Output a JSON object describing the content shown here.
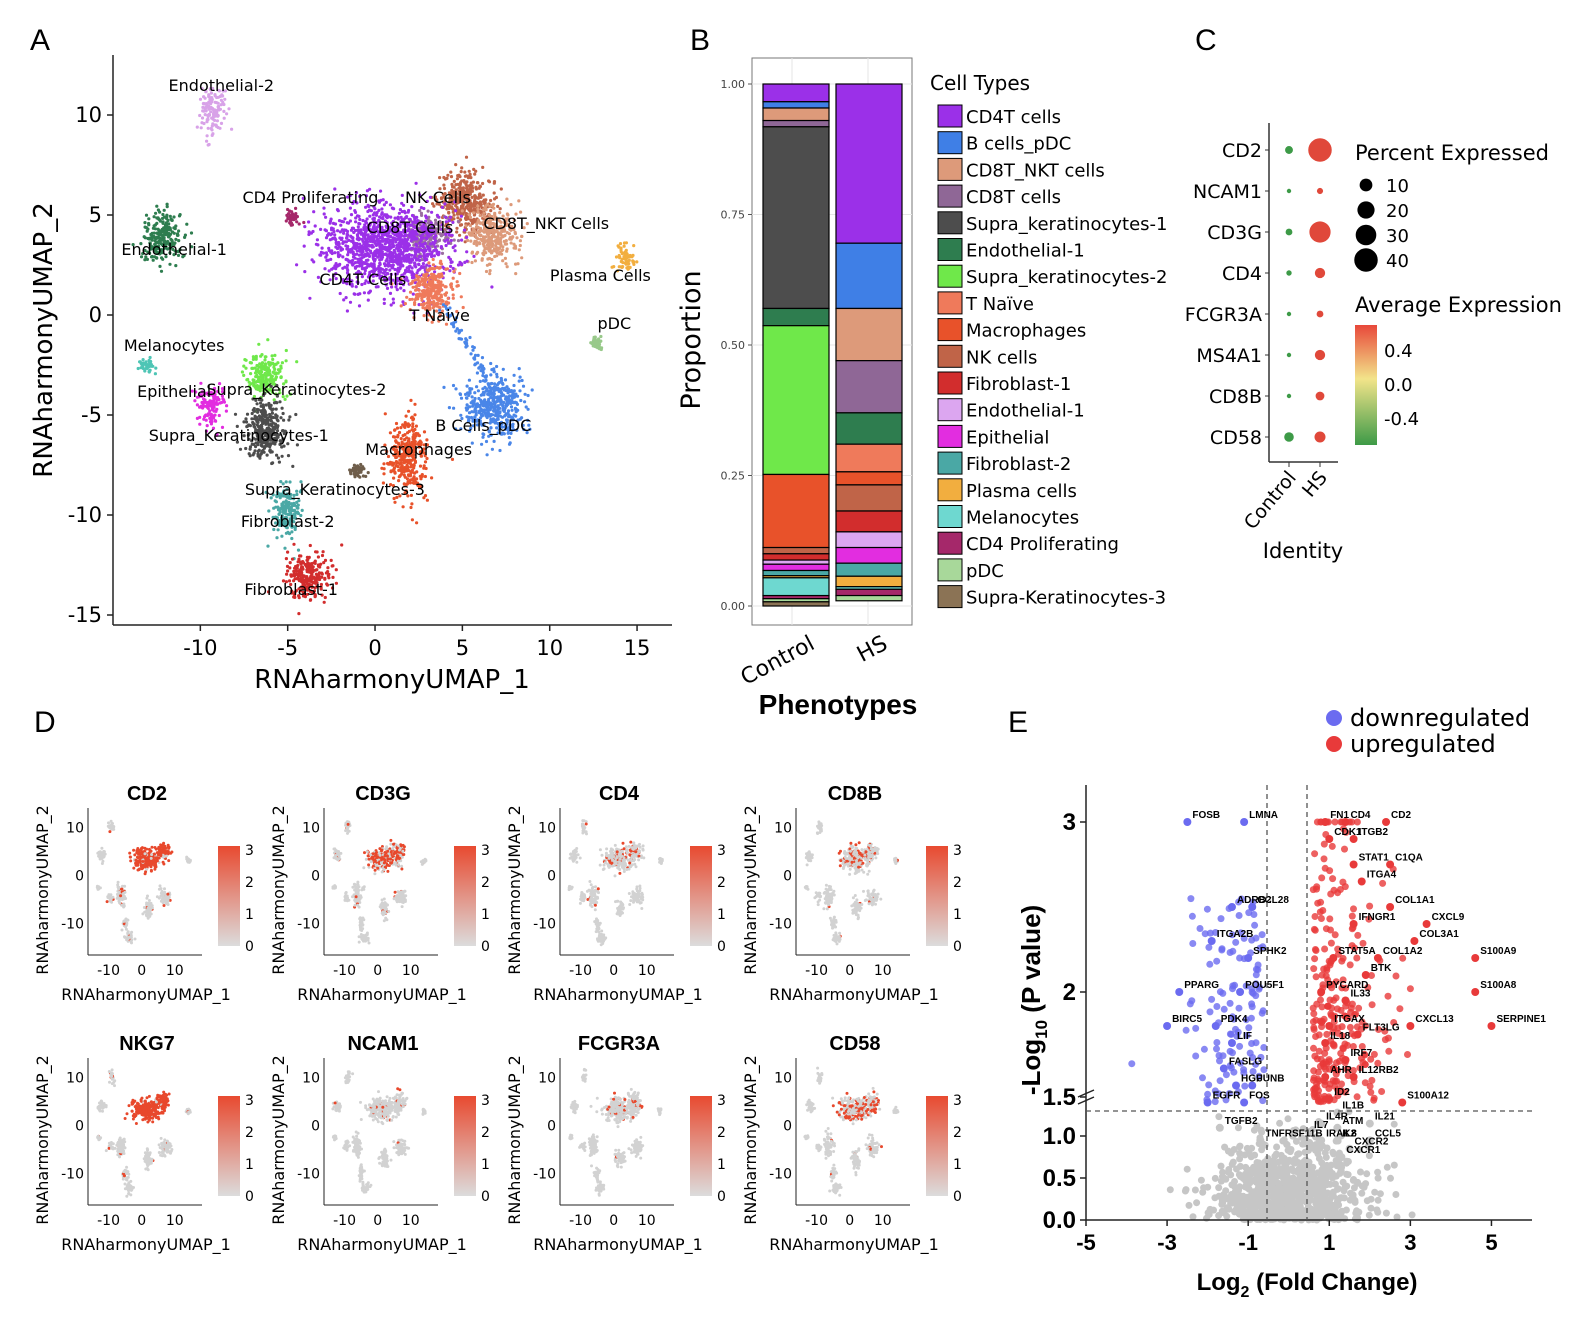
{
  "panels": {
    "A": {
      "letter": "A",
      "xlabel": "RNAharmonyUMAP_1",
      "ylabel": "RNAharmonyUMAP_2",
      "xticks": [
        -10,
        -5,
        0,
        5,
        10,
        15
      ],
      "yticks": [
        10,
        5,
        0,
        -5,
        -10,
        -15
      ],
      "xlim": [
        -15,
        17
      ],
      "ylim": [
        -15.5,
        13
      ],
      "clusters": [
        {
          "name": "Endothelial-2",
          "color": "#d8a2e8",
          "x": -9.3,
          "y": 10.2,
          "rx": 0.7,
          "ry": 1.2,
          "lx": -8.8,
          "ly": 11.2
        },
        {
          "name": "Endothelial-1",
          "color": "#2e7d4f",
          "x": -12.2,
          "y": 3.9,
          "rx": 1.1,
          "ry": 1.3,
          "lx": -11.5,
          "ly": 3.0
        },
        {
          "name": "CD4 Proliferating",
          "color": "#a5286a",
          "x": -4.7,
          "y": 4.9,
          "rx": 0.4,
          "ry": 0.4,
          "lx": -3.7,
          "ly": 5.6
        },
        {
          "name": "NK Cells",
          "color": "#c06448",
          "x": 5.2,
          "y": 5.6,
          "rx": 1.6,
          "ry": 1.5,
          "lx": 3.6,
          "ly": 5.6
        },
        {
          "name": "CD8T Cells",
          "color": "#9a6fa0",
          "x": 3.0,
          "y": 4.0,
          "rx": 1.3,
          "ry": 1.0,
          "lx": 2.0,
          "ly": 4.1
        },
        {
          "name": "CD8T_NKT Cells",
          "color": "#dd9a7a",
          "x": 6.7,
          "y": 4.0,
          "rx": 1.5,
          "ry": 1.4,
          "lx": 9.8,
          "ly": 4.3
        },
        {
          "name": "CD4T Cells",
          "color": "#9b30e8",
          "x": 0.6,
          "y": 3.4,
          "rx": 3.7,
          "ry": 2.1,
          "lx": -0.7,
          "ly": 1.5
        },
        {
          "name": "T Naive",
          "color": "#ef7a5b",
          "x": 3.2,
          "y": 1.2,
          "rx": 1.3,
          "ry": 1.3,
          "lx": 3.7,
          "ly": -0.3
        },
        {
          "name": "Plasma Cells",
          "color": "#f2ae3f",
          "x": 14.3,
          "y": 2.9,
          "rx": 0.6,
          "ry": 0.7,
          "lx": 12.9,
          "ly": 1.7
        },
        {
          "name": "pDC",
          "color": "#98c98a",
          "x": 12.7,
          "y": -1.4,
          "rx": 0.3,
          "ry": 0.25,
          "lx": 13.7,
          "ly": -0.7
        },
        {
          "name": "B Cells_pDC",
          "color": "#4a86e8",
          "x": 6.8,
          "y": -4.6,
          "rx": 1.7,
          "ry": 1.6,
          "lx": 6.2,
          "ly": -5.8
        },
        {
          "name": "Melanocytes",
          "color": "#4ec5b5",
          "x": -13.0,
          "y": -2.5,
          "rx": 0.5,
          "ry": 0.35,
          "lx": -11.5,
          "ly": -1.8
        },
        {
          "name": "Epithelial",
          "color": "#e22de0",
          "x": -9.4,
          "y": -4.5,
          "rx": 0.8,
          "ry": 1.0,
          "lx": -11.5,
          "ly": -4.1
        },
        {
          "name": "Supra_Keratinocytes-2",
          "color": "#6fe84a",
          "x": -6.3,
          "y": -3.0,
          "rx": 1.2,
          "ry": 1.1,
          "lx": -4.5,
          "ly": -4.0
        },
        {
          "name": "Supra_Keratinocytes-1",
          "color": "#4d4d4d",
          "x": -6.3,
          "y": -5.7,
          "rx": 1.2,
          "ry": 1.6,
          "lx": -7.8,
          "ly": -6.3
        },
        {
          "name": "Macrophages",
          "color": "#e8522a",
          "x": 1.9,
          "y": -7.1,
          "rx": 1.1,
          "ry": 1.9,
          "lx": 2.5,
          "ly": -7.0
        },
        {
          "name": "Supra_Keratinocytes-3",
          "color": "#6e5d4a",
          "x": -1.0,
          "y": -7.8,
          "rx": 0.5,
          "ry": 0.3,
          "lx": -2.3,
          "ly": -9.0
        },
        {
          "name": "Fibroblast-2",
          "color": "#4aa8a5",
          "x": -5.0,
          "y": -9.8,
          "rx": 0.8,
          "ry": 1.4,
          "lx": -5.0,
          "ly": -10.6
        },
        {
          "name": "Fibroblast-1",
          "color": "#d22d2d",
          "x": -3.8,
          "y": -13.0,
          "rx": 1.3,
          "ry": 1.2,
          "lx": -4.8,
          "ly": -14.0
        }
      ]
    },
    "B": {
      "letter": "B",
      "ylabel": "Proportion",
      "xlabel": "Phenotypes",
      "yticks": [
        "1.00",
        "0.75",
        "0.50",
        "0.25",
        "0.00"
      ],
      "legend_title": "Cell Types"
    },
    "C": {
      "letter": "C",
      "xlabel": "Identity",
      "size_title": "Percent Expressed",
      "size_levels": [
        "10",
        "20",
        "30",
        "40"
      ],
      "color_title": "Average Expression",
      "color_ticks": [
        "0.4",
        "0.0",
        "-0.4"
      ]
    },
    "D": {
      "letter": "D",
      "xlabel": "RNAharmonyUMAP_1",
      "ylabel": "RNAharmonyUMAP_2",
      "xticks": [
        "-10",
        "0",
        "10"
      ],
      "yticks": [
        "10",
        "0",
        "-10"
      ],
      "scale_ticks": [
        "3",
        "2",
        "1",
        "0"
      ],
      "genes": [
        {
          "name": "CD2",
          "hot": 0.9
        },
        {
          "name": "CD3G",
          "hot": 0.6
        },
        {
          "name": "CD4",
          "hot": 0.2
        },
        {
          "name": "CD8B",
          "hot": 0.25
        },
        {
          "name": "NKG7",
          "hot": 0.95
        },
        {
          "name": "NCAM1",
          "hot": 0.05
        },
        {
          "name": "FCGR3A",
          "hot": 0.12
        },
        {
          "name": "CD58",
          "hot": 0.35
        }
      ]
    },
    "E": {
      "letter": "E",
      "xlabel_main": "Log",
      "xlabel_sub": "2",
      "xlabel_rest": " (Fold Change)",
      "ylabel_main": "-Log",
      "ylabel_sub": "10",
      "ylabel_rest": " (P value)",
      "xticks": [
        "-5",
        "-3",
        "-1",
        "1",
        "3",
        "5"
      ],
      "yticks_upper": [
        "3",
        "2"
      ],
      "yticks_lower": [
        "1.5",
        "1.0",
        "0.5",
        "0.0"
      ],
      "legend_down": "downregulated",
      "legend_up": "upregulated",
      "color_down": "#6b6bf0",
      "color_up": "#e83a3a",
      "color_ns": "#c6c6c6"
    }
  },
  "chart_data": [
    {
      "type": "bar",
      "title": "",
      "stacked": true,
      "categories": [
        "Control",
        "HS"
      ],
      "xlabel": "Phenotypes",
      "ylabel": "Proportion",
      "ylim": [
        0,
        1
      ],
      "series": [
        {
          "name": "CD4T cells",
          "color": "#9b30e8",
          "values": [
            0.034,
            0.305
          ]
        },
        {
          "name": "B cells_pDC",
          "color": "#3f7fe6",
          "values": [
            0.012,
            0.125
          ]
        },
        {
          "name": "CD8T_NKT cells",
          "color": "#dd9a7a",
          "values": [
            0.024,
            0.1
          ]
        },
        {
          "name": "CD8T cells",
          "color": "#8f6796",
          "values": [
            0.012,
            0.1
          ]
        },
        {
          "name": "Supra_keratinocytes-1",
          "color": "#4d4d4d",
          "values": [
            0.348,
            0.0
          ]
        },
        {
          "name": "Endothelial-1",
          "color": "#2e7d4f",
          "values": [
            0.033,
            0.06
          ]
        },
        {
          "name": "Supra_keratinocytes-2",
          "color": "#6fe84a",
          "values": [
            0.285,
            0.0
          ]
        },
        {
          "name": "T Naïve",
          "color": "#ef7a5b",
          "values": [
            0.0,
            0.053
          ]
        },
        {
          "name": "Macrophages",
          "color": "#e8522a",
          "values": [
            0.14,
            0.025
          ]
        },
        {
          "name": "NK cells",
          "color": "#c06448",
          "values": [
            0.012,
            0.05
          ]
        },
        {
          "name": "Fibroblast-1",
          "color": "#d22d2d",
          "values": [
            0.012,
            0.04
          ]
        },
        {
          "name": "Endothelial-1",
          "color": "#dca6f0",
          "values": [
            0.008,
            0.03
          ]
        },
        {
          "name": "Epithelial",
          "color": "#e22de0",
          "values": [
            0.012,
            0.03
          ]
        },
        {
          "name": "Fibroblast-2",
          "color": "#4aa8a5",
          "values": [
            0.01,
            0.025
          ]
        },
        {
          "name": "Plasma cells",
          "color": "#f2ae3f",
          "values": [
            0.004,
            0.02
          ]
        },
        {
          "name": "Melanocytes",
          "color": "#6ed8d0",
          "values": [
            0.034,
            0.005
          ]
        },
        {
          "name": "CD4 Proliferating",
          "color": "#a5286a",
          "values": [
            0.006,
            0.012
          ]
        },
        {
          "name": "pDC",
          "color": "#a8d89a",
          "values": [
            0.006,
            0.01
          ]
        },
        {
          "name": "Supra-Keratinocytes-3",
          "color": "#8b7355",
          "values": [
            0.008,
            0.0
          ]
        }
      ]
    },
    {
      "type": "scatter",
      "title": "",
      "subtype": "dotplot",
      "categories": [
        "Control",
        "HS"
      ],
      "genes": [
        "CD2",
        "NCAM1",
        "CD3G",
        "CD4",
        "FCGR3A",
        "MS4A1",
        "CD8B",
        "CD58"
      ],
      "xlabel": "Identity",
      "percent_expressed": [
        [
          3,
          40
        ],
        [
          0.5,
          1.5
        ],
        [
          2,
          32
        ],
        [
          1,
          6
        ],
        [
          0.5,
          2
        ],
        [
          0.5,
          6
        ],
        [
          0.5,
          4
        ],
        [
          5,
          7
        ]
      ],
      "average_expression": [
        [
          -0.6,
          0.6
        ],
        [
          -0.6,
          0.5
        ],
        [
          -0.6,
          0.6
        ],
        [
          -0.6,
          0.6
        ],
        [
          -0.6,
          0.5
        ],
        [
          -0.6,
          0.6
        ],
        [
          -0.6,
          0.6
        ],
        [
          -0.6,
          0.6
        ]
      ]
    },
    {
      "type": "scatter",
      "title": "",
      "subtype": "volcano",
      "xlabel": "Log2 (Fold Change)",
      "ylabel": "-Log10 (P value)",
      "xlim": [
        -5,
        6
      ],
      "thresholds": {
        "x": [
          -0.5,
          0.5
        ],
        "y": 1.3
      },
      "labeled_points": [
        {
          "label": "FOSB",
          "x": -2.5,
          "y": 3.0,
          "dir": "down"
        },
        {
          "label": "LMNA",
          "x": -1.1,
          "y": 3.0,
          "dir": "down"
        },
        {
          "label": "ADRB2",
          "x": -1.4,
          "y": 2.5,
          "dir": "down"
        },
        {
          "label": "CCL28",
          "x": -0.9,
          "y": 2.5,
          "dir": "down"
        },
        {
          "label": "ITGA2B",
          "x": -1.9,
          "y": 2.3,
          "dir": "down"
        },
        {
          "label": "SPHK2",
          "x": -1.0,
          "y": 2.2,
          "dir": "down"
        },
        {
          "label": "PPARG",
          "x": -2.7,
          "y": 2.0,
          "dir": "down"
        },
        {
          "label": "POU5F1",
          "x": -1.2,
          "y": 2.0,
          "dir": "down"
        },
        {
          "label": "BIRC5",
          "x": -3.0,
          "y": 1.8,
          "dir": "down"
        },
        {
          "label": "PDK4",
          "x": -1.8,
          "y": 1.8,
          "dir": "down"
        },
        {
          "label": "LIF",
          "x": -1.4,
          "y": 1.7,
          "dir": "down"
        },
        {
          "label": "FASLG",
          "x": -1.6,
          "y": 1.55,
          "dir": "down"
        },
        {
          "label": "HGF",
          "x": -1.3,
          "y": 1.45,
          "dir": "down"
        },
        {
          "label": "JUNB",
          "x": -0.9,
          "y": 1.45,
          "dir": "down"
        },
        {
          "label": "EGFR",
          "x": -2.0,
          "y": 1.35,
          "dir": "down"
        },
        {
          "label": "FOS",
          "x": -1.1,
          "y": 1.35,
          "dir": "down"
        },
        {
          "label": "TGFB2",
          "x": -1.7,
          "y": 1.1,
          "dir": "ns"
        },
        {
          "label": "TNFRSF11B",
          "x": -0.7,
          "y": 0.95,
          "dir": "ns"
        },
        {
          "label": "FN1",
          "x": 0.9,
          "y": 3.0,
          "dir": "up"
        },
        {
          "label": "CD4",
          "x": 1.4,
          "y": 3.0,
          "dir": "up"
        },
        {
          "label": "CD2",
          "x": 2.4,
          "y": 3.0,
          "dir": "up"
        },
        {
          "label": "CDK1",
          "x": 1.0,
          "y": 2.9,
          "dir": "up"
        },
        {
          "label": "ITGB2",
          "x": 1.6,
          "y": 2.9,
          "dir": "up"
        },
        {
          "label": "STAT1",
          "x": 1.6,
          "y": 2.75,
          "dir": "up"
        },
        {
          "label": "C1QA",
          "x": 2.5,
          "y": 2.75,
          "dir": "up"
        },
        {
          "label": "ITGA4",
          "x": 1.8,
          "y": 2.65,
          "dir": "up"
        },
        {
          "label": "COL1A1",
          "x": 2.5,
          "y": 2.5,
          "dir": "up"
        },
        {
          "label": "CXCL9",
          "x": 3.4,
          "y": 2.4,
          "dir": "up"
        },
        {
          "label": "IFNGR1",
          "x": 1.6,
          "y": 2.4,
          "dir": "up"
        },
        {
          "label": "COL3A1",
          "x": 3.1,
          "y": 2.3,
          "dir": "up"
        },
        {
          "label": "S100A9",
          "x": 4.6,
          "y": 2.2,
          "dir": "up"
        },
        {
          "label": "STAT5A",
          "x": 1.1,
          "y": 2.2,
          "dir": "up"
        },
        {
          "label": "COL1A2",
          "x": 2.2,
          "y": 2.2,
          "dir": "up"
        },
        {
          "label": "BTK",
          "x": 1.9,
          "y": 2.1,
          "dir": "up"
        },
        {
          "label": "S100A8",
          "x": 4.6,
          "y": 2.0,
          "dir": "up"
        },
        {
          "label": "PYCARD",
          "x": 0.8,
          "y": 2.0,
          "dir": "up"
        },
        {
          "label": "IL33",
          "x": 1.4,
          "y": 1.95,
          "dir": "up"
        },
        {
          "label": "CXCL13",
          "x": 3.0,
          "y": 1.8,
          "dir": "up"
        },
        {
          "label": "SERPINE1",
          "x": 5.0,
          "y": 1.8,
          "dir": "up"
        },
        {
          "label": "ITGAX",
          "x": 1.0,
          "y": 1.8,
          "dir": "up"
        },
        {
          "label": "FLT3LG",
          "x": 1.7,
          "y": 1.75,
          "dir": "up"
        },
        {
          "label": "IL18",
          "x": 0.9,
          "y": 1.7,
          "dir": "up"
        },
        {
          "label": "IRF7",
          "x": 1.4,
          "y": 1.6,
          "dir": "up"
        },
        {
          "label": "AHR",
          "x": 0.9,
          "y": 1.5,
          "dir": "up"
        },
        {
          "label": "IL12RB2",
          "x": 1.6,
          "y": 1.5,
          "dir": "up"
        },
        {
          "label": "S100A12",
          "x": 2.8,
          "y": 1.35,
          "dir": "up"
        },
        {
          "label": "ID2",
          "x": 1.0,
          "y": 1.37,
          "dir": "up"
        },
        {
          "label": "IL1B",
          "x": 1.2,
          "y": 1.28,
          "dir": "ns"
        },
        {
          "label": "IL4R",
          "x": 0.8,
          "y": 1.15,
          "dir": "ns"
        },
        {
          "label": "IL21",
          "x": 2.0,
          "y": 1.15,
          "dir": "ns"
        },
        {
          "label": "ATM",
          "x": 1.2,
          "y": 1.1,
          "dir": "ns"
        },
        {
          "label": "IL7",
          "x": 0.5,
          "y": 1.05,
          "dir": "ns"
        },
        {
          "label": "IRAK2",
          "x": 0.8,
          "y": 0.95,
          "dir": "ns"
        },
        {
          "label": "IL8",
          "x": 1.2,
          "y": 0.95,
          "dir": "ns"
        },
        {
          "label": "CCL5",
          "x": 2.0,
          "y": 0.95,
          "dir": "ns"
        },
        {
          "label": "CXCR2",
          "x": 1.5,
          "y": 0.85,
          "dir": "ns"
        },
        {
          "label": "CXCR1",
          "x": 1.3,
          "y": 0.75,
          "dir": "ns"
        }
      ]
    }
  ]
}
